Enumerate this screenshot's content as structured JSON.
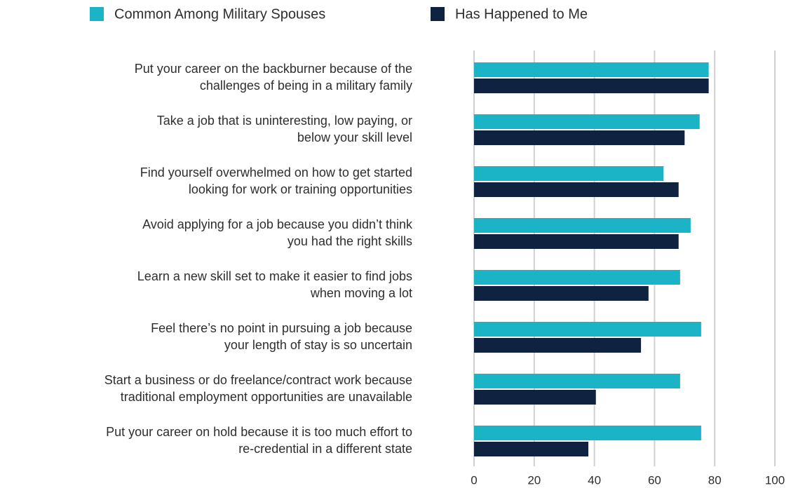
{
  "chart_data": {
    "type": "hbar",
    "categories": [
      [
        "Put your career on the backburner because of the",
        "challenges of being in a military family"
      ],
      [
        "Take a job that is uninteresting, low paying, or",
        "below your skill level"
      ],
      [
        "Find yourself overwhelmed on how to get started",
        "looking for work or training opportunities"
      ],
      [
        "Avoid applying for a job because you didn’t think",
        "you had the right skills"
      ],
      [
        "Learn a new skill set to make it easier to find jobs",
        "when moving a lot"
      ],
      [
        "Feel there’s no point in pursuing a job because",
        "your length of stay is so uncertain"
      ],
      [
        "Start a business or do freelance/contract work because",
        "traditional employment opportunities are unavailable"
      ],
      [
        "Put your career on hold because it is too much effort to",
        "re-credential in a different state"
      ]
    ],
    "series": [
      {
        "name": "Common Among Military Spouses",
        "color": "#1bb3c6",
        "values": [
          78,
          75,
          63,
          72,
          68.5,
          75.5,
          68.5,
          75.5
        ]
      },
      {
        "name": "Has Happened to Me",
        "color": "#0f2240",
        "values": [
          78,
          70,
          68,
          68,
          58,
          55.5,
          40.5,
          38
        ]
      }
    ],
    "xlim": [
      0,
      100
    ],
    "xticks": [
      0,
      20,
      40,
      60,
      80,
      100
    ],
    "grid": true,
    "legend": "top"
  }
}
